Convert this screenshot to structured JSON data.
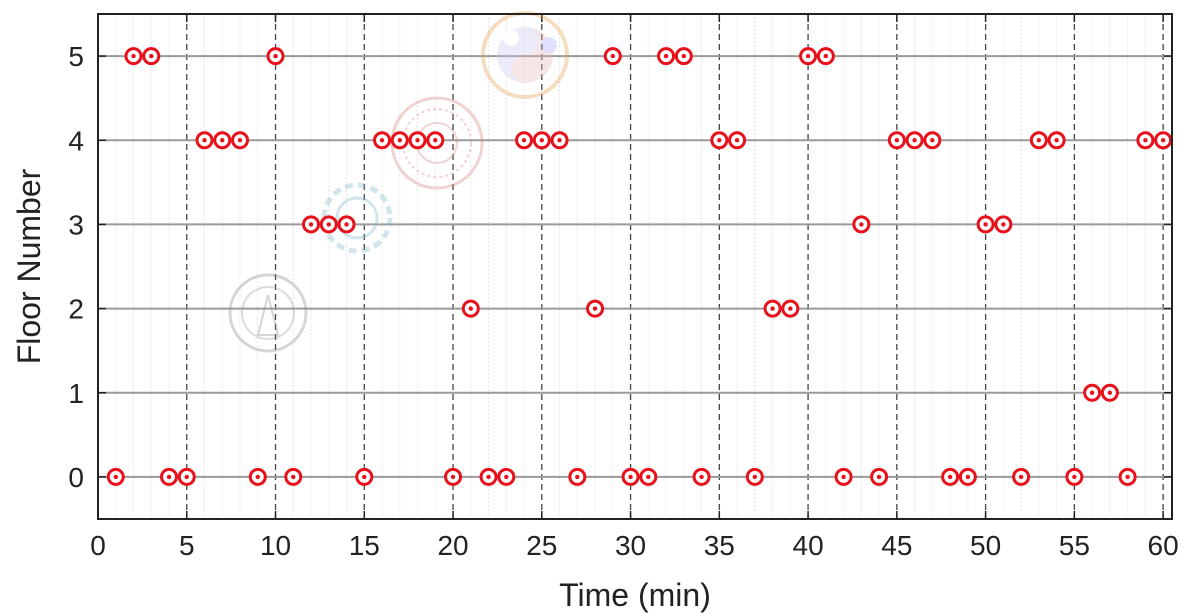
{
  "chart_data": {
    "type": "scatter",
    "title": "",
    "xlabel": "Time (min)",
    "ylabel": "Floor Number",
    "xlim": [
      0,
      60.5
    ],
    "ylim": [
      -0.5,
      5.5
    ],
    "x_ticks": [
      0,
      5,
      10,
      15,
      20,
      25,
      30,
      35,
      40,
      45,
      50,
      55,
      60
    ],
    "y_ticks": [
      0,
      1,
      2,
      3,
      4,
      5
    ],
    "grid": {
      "horizontal": "solid",
      "vertical_major": "dashed",
      "vertical_minor": "dotted"
    },
    "marker": {
      "shape": "double-circle",
      "color": "#e8101a"
    },
    "series": [
      {
        "x": [
          1,
          2,
          3,
          4,
          5,
          6,
          7,
          8,
          9,
          10,
          11,
          12,
          13,
          14,
          15,
          16,
          17,
          18,
          19,
          20,
          21,
          22,
          23,
          24,
          25,
          26,
          27,
          28,
          29,
          30,
          31,
          32,
          33,
          34,
          35,
          36,
          37,
          38,
          39,
          40,
          41,
          42,
          43,
          44,
          45,
          46,
          47,
          48,
          49,
          50,
          51,
          52,
          53,
          54,
          55,
          56,
          57,
          58,
          59,
          60
        ],
        "y": [
          0,
          5,
          5,
          0,
          0,
          4,
          4,
          4,
          0,
          5,
          0,
          3,
          3,
          3,
          0,
          4,
          4,
          4,
          4,
          0,
          2,
          0,
          0,
          4,
          4,
          4,
          0,
          2,
          5,
          0,
          0,
          5,
          5,
          0,
          4,
          4,
          0,
          2,
          2,
          5,
          5,
          0,
          3,
          0,
          4,
          4,
          4,
          0,
          0,
          3,
          3,
          0,
          4,
          4,
          0,
          1,
          1,
          0,
          4,
          4
        ]
      }
    ]
  }
}
